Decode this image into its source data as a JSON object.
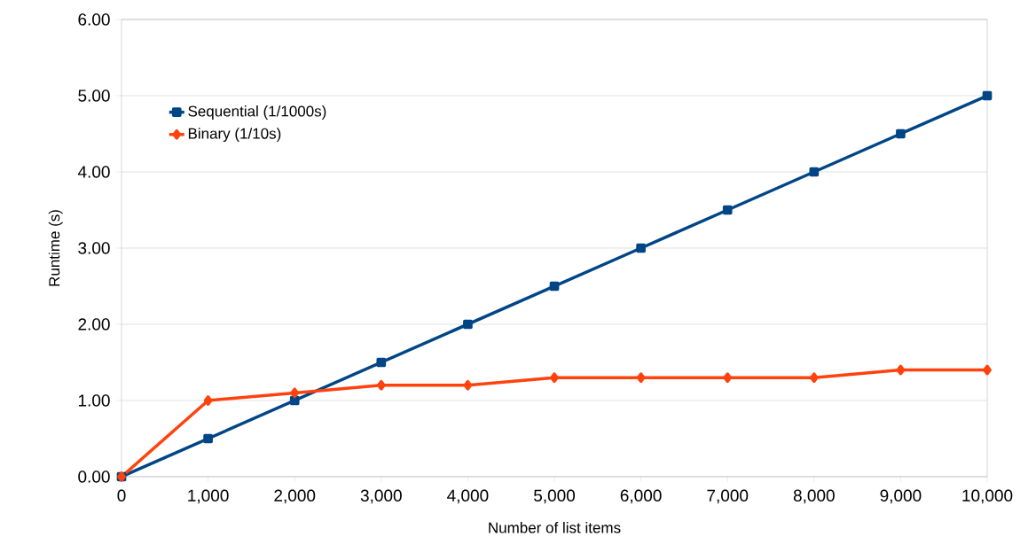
{
  "chart_data": {
    "type": "line",
    "xlabel": "Number of list items",
    "ylabel": "Runtime (s)",
    "x": [
      0,
      1000,
      2000,
      3000,
      4000,
      5000,
      6000,
      7000,
      8000,
      9000,
      10000
    ],
    "series": [
      {
        "name": "Sequential (1/1000s)",
        "color": "#004586",
        "marker": "square",
        "values": [
          0,
          0.5,
          1.0,
          1.5,
          2.0,
          2.5,
          3.0,
          3.5,
          4.0,
          4.5,
          5.0
        ]
      },
      {
        "name": "Binary (1/10s)",
        "color": "#ff420e",
        "marker": "diamond",
        "values": [
          0,
          1.0,
          1.1,
          1.2,
          1.2,
          1.3,
          1.3,
          1.3,
          1.3,
          1.4,
          1.4
        ]
      }
    ],
    "xlim": [
      0,
      10000
    ],
    "ylim": [
      0,
      6
    ],
    "xticks": [
      0,
      {
        "value": 1000,
        "label": "1,000"
      },
      {
        "value": 2000,
        "label": "2,000"
      },
      {
        "value": 3000,
        "label": "3,000"
      },
      {
        "value": 4000,
        "label": "4,000"
      },
      {
        "value": 5000,
        "label": "5,000"
      },
      {
        "value": 6000,
        "label": "6,000"
      },
      {
        "value": 7000,
        "label": "7,000"
      },
      {
        "value": 8000,
        "label": "8,000"
      },
      {
        "value": 9000,
        "label": "9,000"
      },
      {
        "value": 10000,
        "label": "10,000"
      }
    ],
    "yticks": [
      {
        "value": 0,
        "label": "0.00"
      },
      {
        "value": 1,
        "label": "1.00"
      },
      {
        "value": 2,
        "label": "2.00"
      },
      {
        "value": 3,
        "label": "3.00"
      },
      {
        "value": 4,
        "label": "4.00"
      },
      {
        "value": 5,
        "label": "5.00"
      },
      {
        "value": 6,
        "label": "6.00"
      }
    ],
    "grid": "y",
    "legend": "top left",
    "line_style": "solid"
  }
}
